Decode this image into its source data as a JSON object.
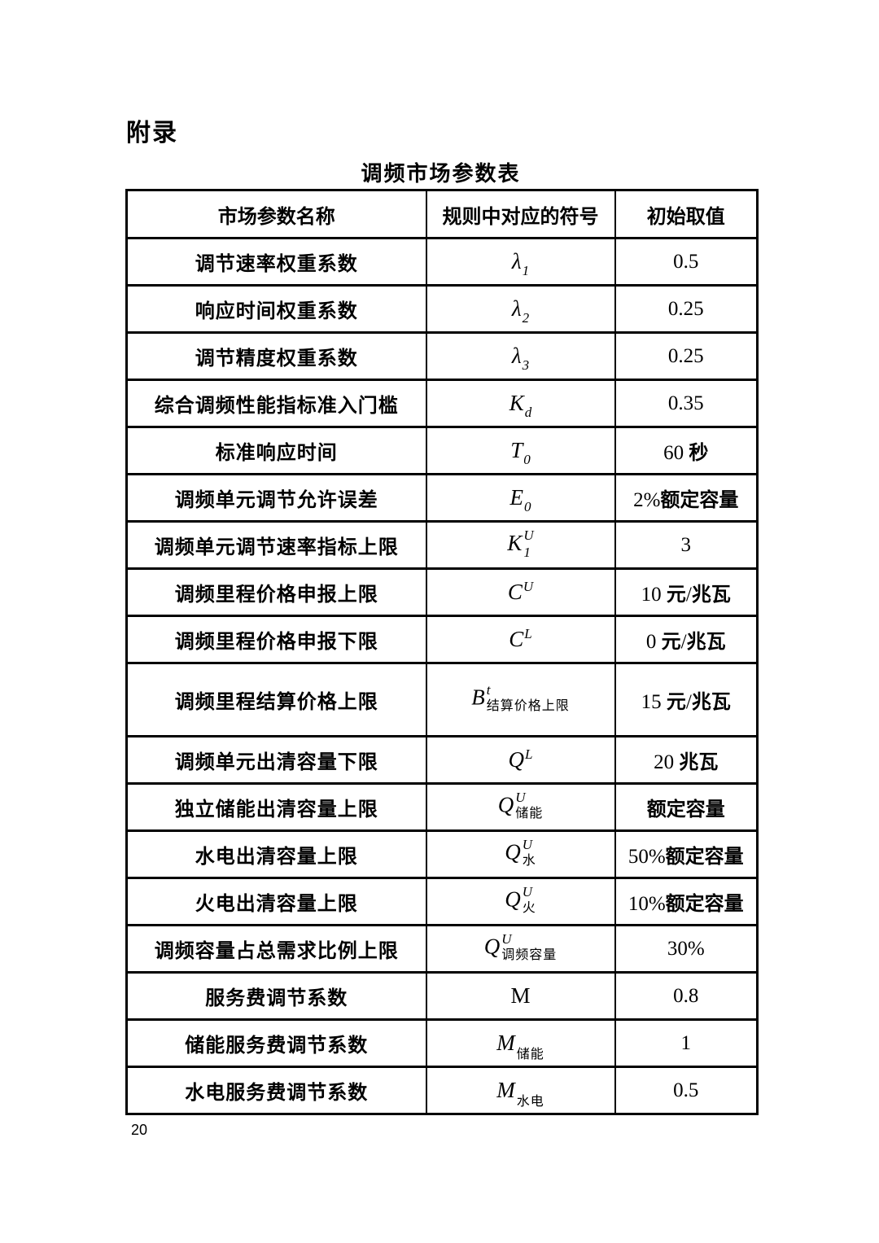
{
  "page": {
    "appendix_label": "附录",
    "table_title": "调频市场参数表",
    "page_number": "20"
  },
  "colors": {
    "text": "#000000",
    "background": "#ffffff",
    "border": "#000000"
  },
  "table": {
    "headers": [
      "市场参数名称",
      "规则中对应的符号",
      "初始取值"
    ],
    "rows": [
      {
        "name": "调节速率权重系数",
        "symbol": {
          "base": "λ",
          "sub": "1"
        },
        "value": "0.5"
      },
      {
        "name": "响应时间权重系数",
        "symbol": {
          "base": "λ",
          "sub": "2"
        },
        "value": "0.25"
      },
      {
        "name": "调节精度权重系数",
        "symbol": {
          "base": "λ",
          "sub": "3"
        },
        "value": "0.25"
      },
      {
        "name": "综合调频性能指标准入门槛",
        "symbol": {
          "base": "K",
          "sub": "d"
        },
        "value": "0.35"
      },
      {
        "name": "标准响应时间",
        "symbol": {
          "base": "T",
          "sub": "0"
        },
        "value": "60 秒"
      },
      {
        "name": "调频单元调节允许误差",
        "symbol": {
          "base": "E",
          "sub": "0"
        },
        "value": "2%额定容量"
      },
      {
        "name": "调频单元调节速率指标上限",
        "symbol": {
          "base": "K",
          "sub": "1",
          "sup": "U"
        },
        "value": "3"
      },
      {
        "name": "调频里程价格申报上限",
        "symbol": {
          "base": "C",
          "sup": "U"
        },
        "value": "10 元/兆瓦"
      },
      {
        "name": "调频里程价格申报下限",
        "symbol": {
          "base": "C",
          "sup": "L"
        },
        "value": "0 元/兆瓦"
      },
      {
        "name": "调频里程结算价格上限",
        "symbol": {
          "base": "B",
          "sup": "t",
          "sub": "结算价格上限"
        },
        "value": "15 元/兆瓦"
      },
      {
        "name": "调频单元出清容量下限",
        "symbol": {
          "base": "Q",
          "sup": "L"
        },
        "value": "20 兆瓦"
      },
      {
        "name": "独立储能出清容量上限",
        "symbol": {
          "base": "Q",
          "sup": "U",
          "sub": "储能"
        },
        "value": "额定容量"
      },
      {
        "name": "水电出清容量上限",
        "symbol": {
          "base": "Q",
          "sup": "U",
          "sub": "水"
        },
        "value": "50%额定容量"
      },
      {
        "name": "火电出清容量上限",
        "symbol": {
          "base": "Q",
          "sup": "U",
          "sub": "火"
        },
        "value": "10%额定容量"
      },
      {
        "name": "调频容量占总需求比例上限",
        "symbol": {
          "base": "Q",
          "sup": "U",
          "sub": "调频容量"
        },
        "value": "30%"
      },
      {
        "name": "服务费调节系数",
        "symbol": {
          "base": "M",
          "italic": false
        },
        "value": "0.8"
      },
      {
        "name": "储能服务费调节系数",
        "symbol": {
          "base": "M",
          "sub": "储能"
        },
        "value": "1"
      },
      {
        "name": "水电服务费调节系数",
        "symbol": {
          "base": "M",
          "sub": "水电"
        },
        "value": "0.5"
      }
    ]
  }
}
